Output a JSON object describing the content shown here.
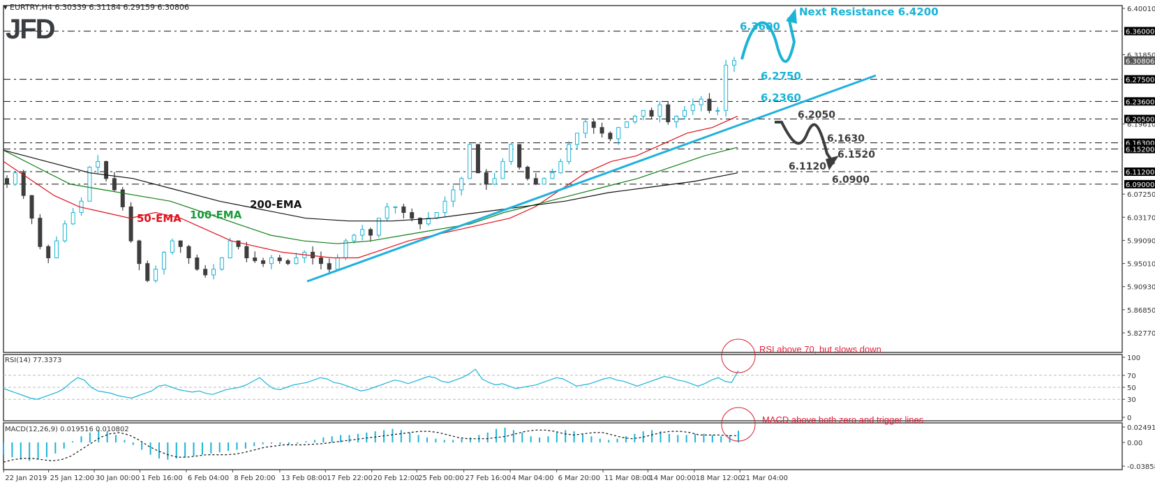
{
  "header": {
    "symbol_info": "▾ EURTRY,H4  6.30339 6.31184 6.29159 6.30806",
    "logo": "JFD"
  },
  "colors": {
    "bull": "#1bb3d6",
    "bear": "#3d3d3d",
    "ema50": "#e0101b",
    "ema100": "#0f7f14",
    "ema200": "#111111",
    "trendline": "#1fb0dd",
    "annotation_blue": "#1bb3d6",
    "annotation_dark": "#3d3d3d",
    "annotation_red": "#e0203a",
    "axis_label_bg": "#000000"
  },
  "chart_data": [
    {
      "type": "candlestick",
      "title": "EURTRY,H4",
      "ohlc_last": {
        "open": 6.30339,
        "high": 6.31184,
        "low": 6.29159,
        "close": 6.30806
      },
      "y_axis_ticks": [
        6.4001,
        6.3185,
        6.1961,
        6.0725,
        6.0317,
        5.9909,
        5.9501,
        5.9093,
        5.8685,
        5.8277
      ],
      "ylim": [
        5.8277,
        6.4001
      ],
      "horizontal_levels": [
        6.36,
        6.275,
        6.236,
        6.205,
        6.163,
        6.152,
        6.112,
        6.09
      ],
      "current_price_label": 6.30806,
      "x_axis_ticks": [
        "22 Jan 2019",
        "25 Jan 12:00",
        "30 Jan 00:00",
        "1 Feb 16:00",
        "6 Feb 04:00",
        "8 Feb 20:00",
        "13 Feb 08:00",
        "17 Feb 22:00",
        "20 Feb 12:00",
        "25 Feb 00:00",
        "27 Feb 16:00",
        "4 Mar 04:00",
        "6 Mar 20:00",
        "11 Mar 08:00",
        "14 Mar 00:00",
        "18 Mar 12:00",
        "21 Mar 04:00"
      ],
      "close_path": [
        6.09,
        6.11,
        6.07,
        6.03,
        5.98,
        5.96,
        5.99,
        6.02,
        6.04,
        6.06,
        6.12,
        6.13,
        6.1,
        6.08,
        6.05,
        5.99,
        5.95,
        5.92,
        5.94,
        5.97,
        5.99,
        5.98,
        5.96,
        5.94,
        5.93,
        5.94,
        5.96,
        5.99,
        5.98,
        5.96,
        5.955,
        5.95,
        5.96,
        5.955,
        5.95,
        5.96,
        5.97,
        5.96,
        5.95,
        5.94,
        5.96,
        5.99,
        6.0,
        6.01,
        6.0,
        6.03,
        6.05,
        6.05,
        6.04,
        6.03,
        6.02,
        6.03,
        6.04,
        6.06,
        6.08,
        6.1,
        6.16,
        6.11,
        6.09,
        6.1,
        6.13,
        6.16,
        6.12,
        6.1,
        6.09,
        6.1,
        6.11,
        6.13,
        6.16,
        6.18,
        6.2,
        6.19,
        6.18,
        6.17,
        6.19,
        6.2,
        6.21,
        6.22,
        6.21,
        6.23,
        6.2,
        6.21,
        6.22,
        6.23,
        6.24,
        6.22,
        6.22,
        6.3,
        6.308
      ],
      "series": [
        {
          "name": "50-EMA",
          "values": [
            6.13,
            6.1,
            6.07,
            6.05,
            6.04,
            6.03,
            6.04,
            6.03,
            6.01,
            5.99,
            5.98,
            5.97,
            5.965,
            5.96,
            5.96,
            5.975,
            5.99,
            6.0,
            6.01,
            6.02,
            6.03,
            6.05,
            6.08,
            6.11,
            6.13,
            6.14,
            6.16,
            6.18,
            6.19,
            6.21
          ]
        },
        {
          "name": "100-EMA",
          "values": [
            6.15,
            6.12,
            6.09,
            6.08,
            6.07,
            6.06,
            6.04,
            6.02,
            6.0,
            5.99,
            5.985,
            5.99,
            6.0,
            6.01,
            6.02,
            6.04,
            6.055,
            6.07,
            6.085,
            6.1,
            6.12,
            6.14,
            6.155
          ]
        },
        {
          "name": "200-EMA",
          "values": [
            6.15,
            6.13,
            6.11,
            6.1,
            6.08,
            6.06,
            6.045,
            6.03,
            6.025,
            6.025,
            6.03,
            6.04,
            6.05,
            6.06,
            6.075,
            6.085,
            6.095,
            6.11
          ]
        }
      ],
      "annotations": {
        "ema_labels": [
          "50-EMA",
          "100-EMA",
          "200-EMA"
        ],
        "bullish_path_levels": [
          "6.3600",
          "6.2750",
          "6.2360"
        ],
        "next_resistance": "Next Resistance 6.4200",
        "bearish_path_levels": [
          "6.2050",
          "6.1630",
          "6.1520",
          "6.1120",
          "6.0900"
        ]
      }
    },
    {
      "type": "line",
      "title": "RSI(14) 77.3373",
      "ylim": [
        0,
        100
      ],
      "y_axis_ticks": [
        100,
        70,
        50,
        30,
        0
      ],
      "reference_lines": [
        70,
        50,
        30
      ],
      "values": [
        48,
        44,
        40,
        36,
        32,
        30,
        34,
        38,
        42,
        48,
        58,
        66,
        62,
        50,
        44,
        42,
        40,
        36,
        34,
        32,
        36,
        40,
        44,
        52,
        54,
        50,
        46,
        44,
        42,
        44,
        40,
        38,
        42,
        46,
        48,
        50,
        54,
        60,
        66,
        56,
        48,
        46,
        50,
        54,
        56,
        58,
        62,
        66,
        64,
        58,
        56,
        52,
        48,
        44,
        46,
        50,
        54,
        58,
        62,
        60,
        56,
        60,
        64,
        68,
        66,
        60,
        58,
        62,
        66,
        72,
        80,
        64,
        58,
        54,
        56,
        52,
        48,
        50,
        52,
        54,
        58,
        62,
        66,
        64,
        58,
        52,
        54,
        56,
        60,
        64,
        66,
        62,
        60,
        56,
        52,
        56,
        60,
        64,
        68,
        66,
        62,
        60,
        56,
        52,
        56,
        62,
        66,
        60,
        58,
        78
      ],
      "annotation": "RSI above 70, but slows down"
    },
    {
      "type": "bar+line",
      "title": "MACD(12,26,9) 0.019516 0.010802",
      "ylim": [
        -0.038586,
        0.024916
      ],
      "y_axis_ticks": [
        0.024916,
        0.0,
        -0.038586
      ],
      "macd_histogram": [
        -0.02,
        -0.024,
        -0.028,
        -0.03,
        -0.028,
        -0.024,
        -0.018,
        -0.01,
        0.002,
        0.01,
        0.016,
        0.02,
        0.018,
        0.012,
        0.004,
        -0.004,
        -0.012,
        -0.02,
        -0.026,
        -0.028,
        -0.026,
        -0.024,
        -0.022,
        -0.02,
        -0.018,
        -0.016,
        -0.014,
        -0.012,
        -0.01,
        -0.006,
        -0.003,
        -0.002,
        -0.003,
        -0.004,
        -0.002,
        0.002,
        0.004,
        0.008,
        0.01,
        0.012,
        0.012,
        0.014,
        0.016,
        0.018,
        0.02,
        0.022,
        0.02,
        0.016,
        0.012,
        0.008,
        0.006,
        0.004,
        0.004,
        0.006,
        0.008,
        0.012,
        0.016,
        0.022,
        0.024,
        0.02,
        0.016,
        0.01,
        0.008,
        0.01,
        0.016,
        0.02,
        0.018,
        0.014,
        0.01,
        0.006,
        0.004,
        0.006,
        0.01,
        0.014,
        0.018,
        0.02,
        0.018,
        0.014,
        0.012,
        0.012,
        0.014,
        0.014,
        0.012,
        0.01,
        0.012,
        0.019
      ],
      "signal_line": [
        -0.032,
        -0.028,
        -0.026,
        -0.026,
        -0.028,
        -0.03,
        -0.028,
        -0.022,
        -0.012,
        -0.002,
        0.008,
        0.014,
        0.016,
        0.012,
        0.004,
        -0.006,
        -0.014,
        -0.02,
        -0.024,
        -0.024,
        -0.022,
        -0.02,
        -0.02,
        -0.02,
        -0.019,
        -0.016,
        -0.012,
        -0.008,
        -0.006,
        -0.004,
        -0.004,
        -0.004,
        -0.003,
        -0.002,
        0.0,
        0.002,
        0.004,
        0.006,
        0.008,
        0.01,
        0.012,
        0.014,
        0.016,
        0.018,
        0.018,
        0.016,
        0.012,
        0.008,
        0.006,
        0.006,
        0.006,
        0.008,
        0.01,
        0.014,
        0.018,
        0.02,
        0.02,
        0.018,
        0.014,
        0.012,
        0.014,
        0.016,
        0.016,
        0.012,
        0.008,
        0.006,
        0.008,
        0.012,
        0.016,
        0.018,
        0.018,
        0.016,
        0.012,
        0.012,
        0.012,
        0.011,
        0.011
      ],
      "annotation": "MACD above both zero and trigger lines"
    }
  ]
}
